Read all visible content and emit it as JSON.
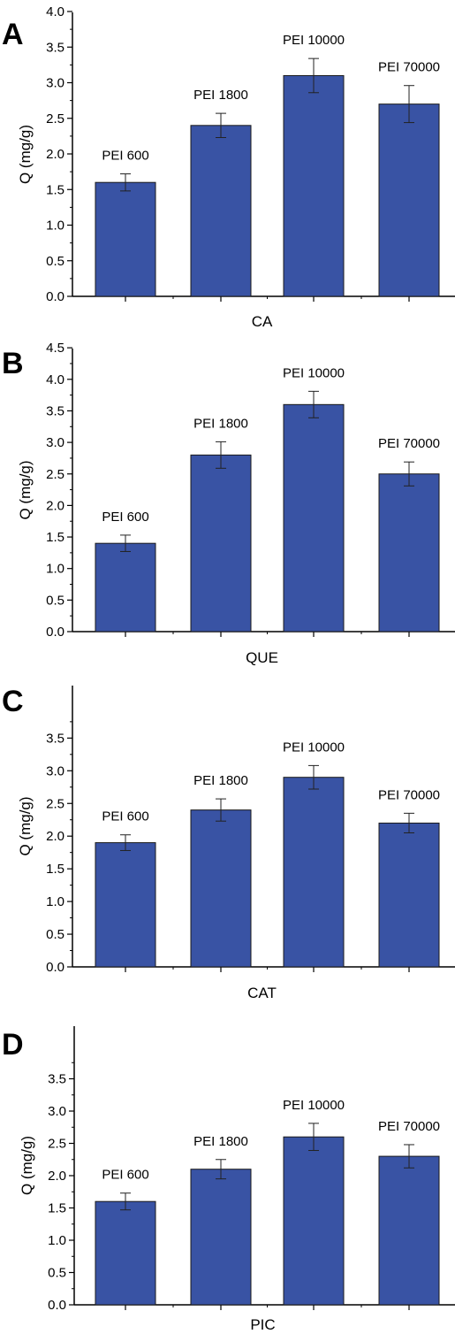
{
  "colors": {
    "bar_fill": "#3953a4",
    "bar_stroke": "#1a1a1a",
    "axis": "#000000"
  },
  "chart_data": [
    {
      "panel": "A",
      "type": "bar",
      "categories": [
        "PEI 600",
        "PEI 1800",
        "PEI 10000",
        "PEI 70000"
      ],
      "values": [
        1.6,
        2.4,
        3.1,
        2.7
      ],
      "errors": [
        0.12,
        0.17,
        0.24,
        0.26
      ],
      "xlabel": "CA",
      "ylabel": "Q (mg/g)",
      "ylim": [
        0,
        4.0
      ],
      "yticks": [
        "0.0",
        "0.5",
        "1.0",
        "1.5",
        "2.0",
        "2.5",
        "3.0",
        "3.5",
        "4.0"
      ]
    },
    {
      "panel": "B",
      "type": "bar",
      "categories": [
        "PEI 600",
        "PEI 1800",
        "PEI 10000",
        "PEI 70000"
      ],
      "values": [
        1.4,
        2.8,
        3.6,
        2.5
      ],
      "errors": [
        0.13,
        0.21,
        0.21,
        0.19
      ],
      "xlabel": "QUE",
      "ylabel": "Q (mg/g)",
      "ylim": [
        0,
        4.5
      ],
      "yticks": [
        "0.0",
        "0.5",
        "1.0",
        "1.5",
        "2.0",
        "2.5",
        "3.0",
        "3.5",
        "4.0",
        "4.5"
      ]
    },
    {
      "panel": "C",
      "type": "bar",
      "categories": [
        "PEI 600",
        "PEI 1800",
        "PEI 10000",
        "PEI 70000"
      ],
      "values": [
        1.9,
        2.4,
        2.9,
        2.2
      ],
      "errors": [
        0.12,
        0.17,
        0.18,
        0.15
      ],
      "xlabel": "CAT",
      "ylabel": "Q (mg/g)",
      "ylim": [
        0,
        3.8
      ],
      "yticks": [
        "0.0",
        "0.5",
        "1.0",
        "1.5",
        "2.0",
        "2.5",
        "3.0",
        "3.5"
      ]
    },
    {
      "panel": "D",
      "type": "bar",
      "categories": [
        "PEI 600",
        "PEI 1800",
        "PEI 10000",
        "PEI 70000"
      ],
      "values": [
        1.6,
        2.1,
        2.6,
        2.3
      ],
      "errors": [
        0.13,
        0.15,
        0.21,
        0.18
      ],
      "xlabel": "PIC",
      "ylabel": "Q (mg/g)",
      "ylim": [
        0,
        3.8
      ],
      "yticks": [
        "0.0",
        "0.5",
        "1.0",
        "1.5",
        "2.0",
        "2.5",
        "3.0",
        "3.5"
      ]
    }
  ]
}
